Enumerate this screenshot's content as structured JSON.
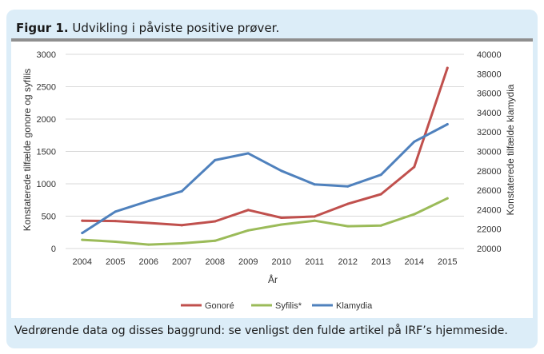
{
  "figure": {
    "label": "Figur 1.",
    "title": "Udvikling i påviste positive prøver.",
    "footer": "Vedrørende data og disses baggrund: se venligst den fulde artikel på IRF’s hjemmeside."
  },
  "chart_data": {
    "type": "line",
    "xlabel": "År",
    "ylabel_left": "Konstaterede tilfælde gonore og syfilis",
    "ylabel_right": "Konstaterede tilfælde klamydia",
    "ylim_left": [
      0,
      3000
    ],
    "yticks_left": [
      "0",
      "500",
      "1000",
      "1500",
      "2000",
      "2500",
      "3000"
    ],
    "ylim_right": [
      20000,
      40000
    ],
    "yticks_right": [
      "20000",
      "22000",
      "24000",
      "26000",
      "28000",
      "30000",
      "32000",
      "34000",
      "36000",
      "38000",
      "40000"
    ],
    "grid": true,
    "legend_position": "bottom",
    "x": [
      "2004",
      "2005",
      "2006",
      "2007",
      "2008",
      "2009",
      "2010",
      "2011",
      "2012",
      "2013",
      "2014",
      "2015"
    ],
    "series": [
      {
        "name": "Gonoré",
        "axis": "left",
        "color": "#c0504d",
        "values": [
          430,
          425,
          395,
          360,
          420,
          595,
          475,
          495,
          690,
          840,
          1260,
          2790
        ]
      },
      {
        "name": "Syfilis*",
        "axis": "left",
        "color": "#9bbb59",
        "values": [
          135,
          105,
          60,
          80,
          120,
          280,
          370,
          430,
          345,
          355,
          530,
          775
        ]
      },
      {
        "name": "Klamydia",
        "axis": "right",
        "color": "#4f81bd",
        "values": [
          21600,
          23800,
          24900,
          25900,
          29100,
          29800,
          28000,
          26600,
          26400,
          27600,
          31000,
          32800
        ]
      }
    ]
  }
}
